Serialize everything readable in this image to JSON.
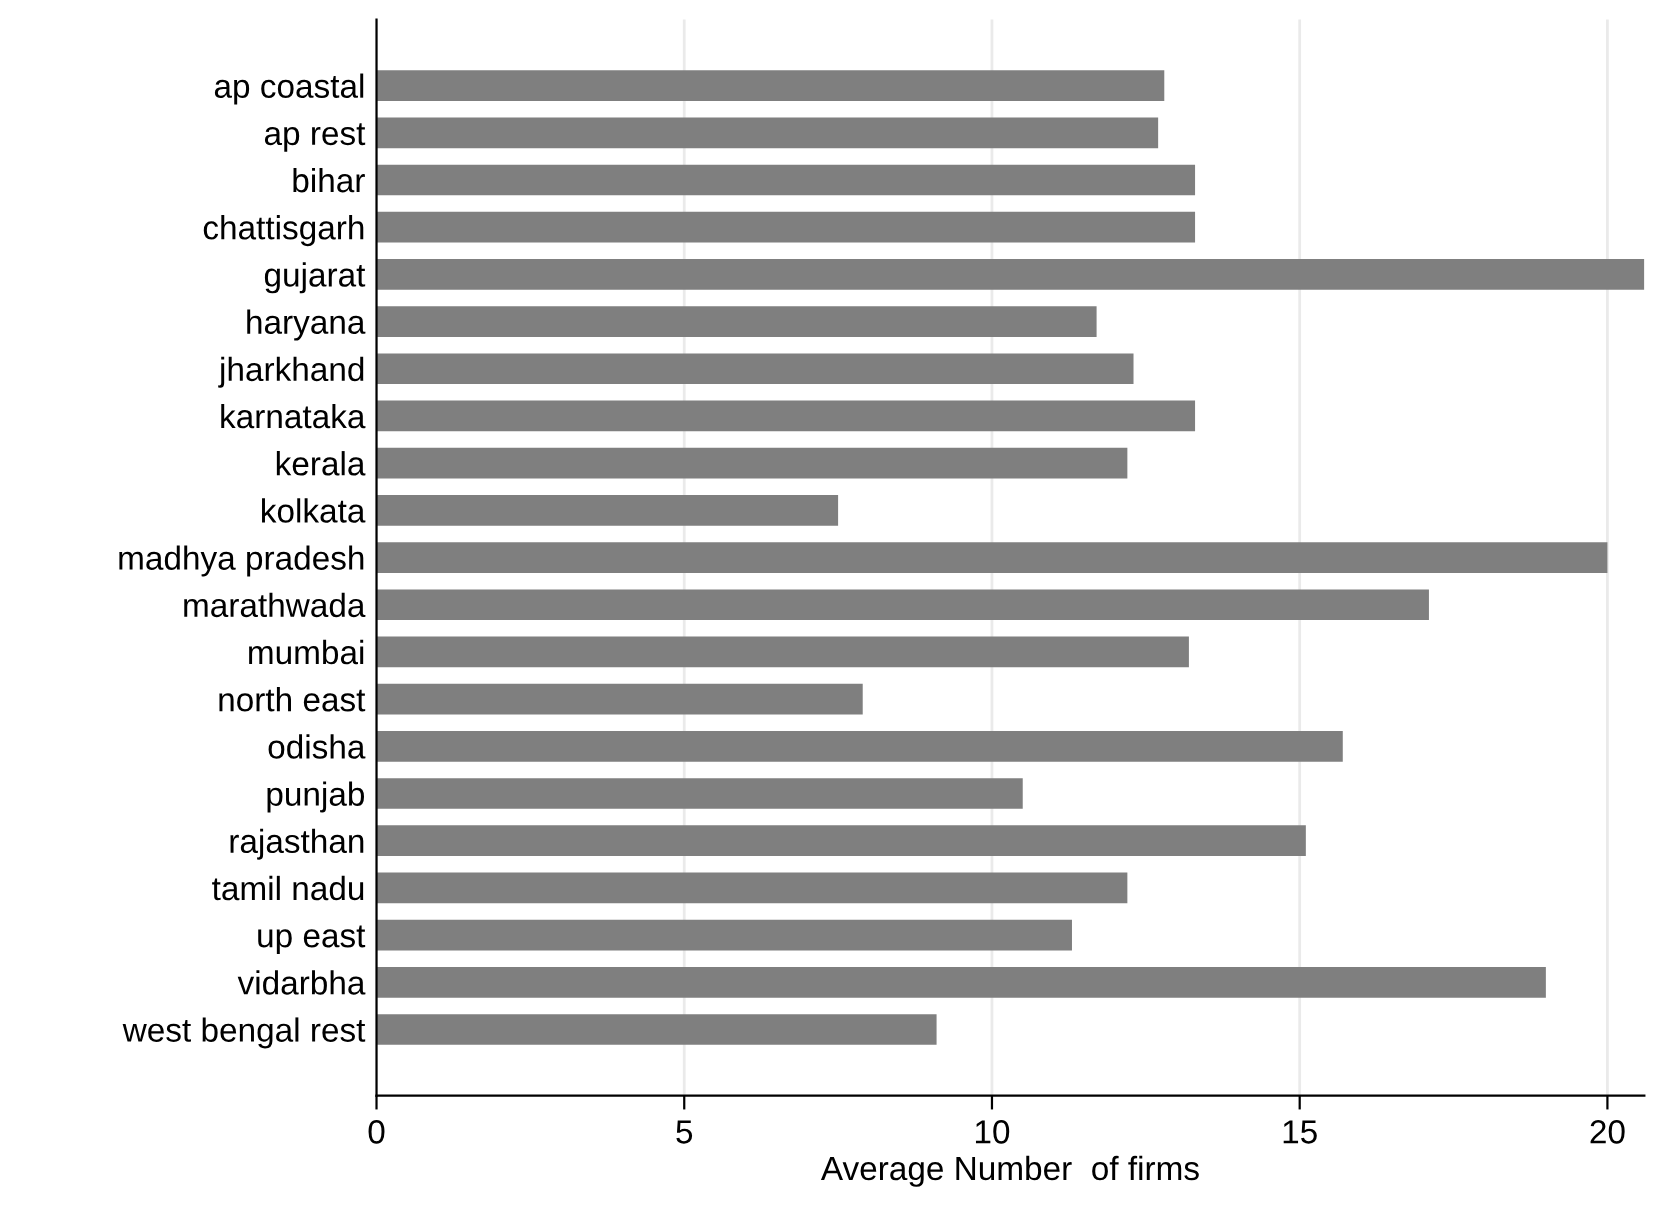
{
  "chart_data": {
    "type": "bar",
    "orientation": "horizontal",
    "xlabel": "Average Number  of firms",
    "categories": [
      "ap coastal",
      "ap rest",
      "bihar",
      "chattisgarh",
      "gujarat",
      "haryana",
      "jharkhand",
      "karnataka",
      "kerala",
      "kolkata",
      "madhya pradesh",
      "marathwada",
      "mumbai",
      "north east",
      "odisha",
      "punjab",
      "rajasthan",
      "tamil nadu",
      "up east",
      "vidarbha",
      "west bengal rest"
    ],
    "values": [
      12.8,
      12.7,
      13.3,
      13.3,
      20.6,
      11.7,
      12.3,
      13.3,
      12.2,
      7.5,
      20.0,
      17.1,
      13.2,
      7.9,
      15.7,
      10.5,
      15.1,
      12.2,
      11.3,
      19.0,
      9.1
    ],
    "color": "#7f7f7f",
    "xlim": [
      0,
      20.6
    ],
    "xticks": [
      0,
      5,
      10,
      15,
      20
    ],
    "grid": "x",
    "legend": false
  }
}
